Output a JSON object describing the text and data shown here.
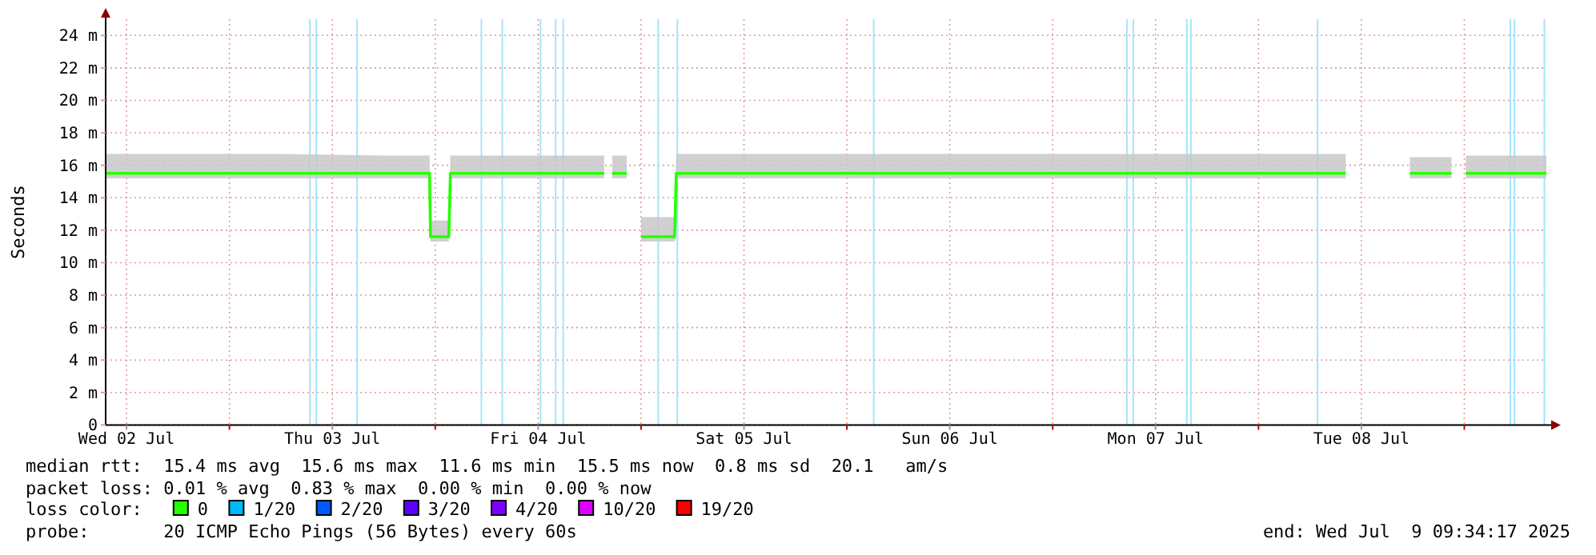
{
  "chart_data": {
    "type": "line",
    "ylabel": "Seconds",
    "legend_title": "loss color:",
    "legend": "bottom",
    "grid": true,
    "xlim": [
      "2025-07-02T09:34",
      "2025-07-09T09:34"
    ],
    "xticks": [
      {
        "value": "2025-07-02T12:00",
        "label": "Wed 02 Jul"
      },
      {
        "value": "2025-07-03T00:00",
        "label": null
      },
      {
        "value": "2025-07-03T12:00",
        "label": "Thu 03 Jul"
      },
      {
        "value": "2025-07-04T00:00",
        "label": null
      },
      {
        "value": "2025-07-04T12:00",
        "label": "Fri 04 Jul"
      },
      {
        "value": "2025-07-05T00:00",
        "label": null
      },
      {
        "value": "2025-07-05T12:00",
        "label": "Sat 05 Jul"
      },
      {
        "value": "2025-07-06T00:00",
        "label": null
      },
      {
        "value": "2025-07-06T12:00",
        "label": "Sun 06 Jul"
      },
      {
        "value": "2025-07-07T00:00",
        "label": null
      },
      {
        "value": "2025-07-07T12:00",
        "label": "Mon 07 Jul"
      },
      {
        "value": "2025-07-08T00:00",
        "label": null
      },
      {
        "value": "2025-07-08T12:00",
        "label": "Tue 08 Jul"
      },
      {
        "value": "2025-07-09T00:00",
        "label": null
      }
    ],
    "ylim": [
      0,
      25
    ],
    "yticks": [
      0,
      {
        "value": 2,
        "label": "2 m"
      },
      {
        "value": 4,
        "label": "4 m"
      },
      {
        "value": 6,
        "label": "6 m"
      },
      {
        "value": 8,
        "label": "8 m"
      },
      {
        "value": 10,
        "label": "10 m"
      },
      {
        "value": 12,
        "label": "12 m"
      },
      {
        "value": 14,
        "label": "14 m"
      },
      {
        "value": 16,
        "label": "16 m"
      },
      {
        "value": 18,
        "label": "18 m"
      },
      {
        "value": 20,
        "label": "20 m"
      },
      {
        "value": 22,
        "label": "22 m"
      },
      {
        "value": 24,
        "label": "24 m"
      }
    ],
    "series": [
      {
        "name": "0",
        "color": "#26ff00",
        "x": [
          "2025-07-02T09:34",
          "2025-07-02T18:00",
          "2025-07-03T06:00",
          "2025-07-03T18:00",
          "2025-07-03T23:20",
          "2025-07-03T23:27",
          "2025-07-04T01:35",
          "2025-07-04T01:46",
          "2025-07-04T12:00",
          "2025-07-04T19:42",
          "2025-07-04T20:00",
          "2025-07-04T20:38",
          "2025-07-04T22:20",
          "2025-07-04T23:00",
          "2025-07-05T00:00",
          "2025-07-05T03:55",
          "2025-07-05T04:06",
          "2025-07-05T18:00",
          "2025-07-06T12:00",
          "2025-07-07T06:00",
          "2025-07-07T18:00",
          "2025-07-08T10:10",
          "2025-07-08T14:00",
          "2025-07-08T17:39",
          "2025-07-08T22:30",
          "2025-07-08T23:20",
          "2025-07-09T00:10",
          "2025-07-09T09:34"
        ],
        "values": [
          15.5,
          15.5,
          15.5,
          15.5,
          15.5,
          11.6,
          11.6,
          15.5,
          15.5,
          15.5,
          null,
          15.5,
          15.5,
          null,
          11.6,
          11.6,
          15.5,
          15.5,
          15.5,
          15.5,
          15.5,
          15.5,
          null,
          15.5,
          15.5,
          null,
          15.5,
          15.5
        ],
        "lower": [
          15.2,
          15.2,
          15.2,
          15.2,
          15.2,
          11.3,
          11.3,
          15.2,
          15.2,
          15.2,
          null,
          15.2,
          15.2,
          null,
          11.3,
          11.3,
          15.2,
          15.2,
          15.2,
          15.2,
          15.2,
          15.2,
          null,
          15.2,
          15.2,
          null,
          15.2,
          15.2
        ],
        "upper": [
          16.7,
          16.7,
          16.7,
          16.6,
          16.6,
          12.6,
          12.6,
          16.6,
          16.6,
          16.6,
          null,
          16.6,
          16.6,
          null,
          12.8,
          12.8,
          16.7,
          16.7,
          16.7,
          16.7,
          16.7,
          16.7,
          null,
          16.5,
          16.5,
          null,
          16.6,
          16.6
        ]
      },
      {
        "name": "1/20",
        "color": "#00b8ff"
      },
      {
        "name": "2/20",
        "color": "#0059ff"
      },
      {
        "name": "3/20",
        "color": "#5e00ff"
      },
      {
        "name": "4/20",
        "color": "#7e00ff"
      },
      {
        "name": "10/20",
        "color": "#dd00ff"
      },
      {
        "name": "19/20",
        "color": "#ff0000"
      }
    ],
    "ref_lines": [
      {
        "axis": "x",
        "value": "2025-07-03T09:23",
        "color": "#a6e4fa"
      },
      {
        "axis": "x",
        "value": "2025-07-03T10:08",
        "color": "#a6e4fa"
      },
      {
        "axis": "x",
        "value": "2025-07-03T14:53",
        "color": "#a6e4fa"
      },
      {
        "axis": "x",
        "value": "2025-07-04T05:23",
        "color": "#a6e4fa"
      },
      {
        "axis": "x",
        "value": "2025-07-04T07:49",
        "color": "#a6e4fa"
      },
      {
        "axis": "x",
        "value": "2025-07-04T12:17",
        "color": "#a6e4fa"
      },
      {
        "axis": "x",
        "value": "2025-07-04T14:03",
        "color": "#a6e4fa"
      },
      {
        "axis": "x",
        "value": "2025-07-04T14:55",
        "color": "#a6e4fa"
      },
      {
        "axis": "x",
        "value": "2025-07-05T02:00",
        "color": "#a6e4fa"
      },
      {
        "axis": "x",
        "value": "2025-07-05T04:14",
        "color": "#a6e4fa"
      },
      {
        "axis": "x",
        "value": "2025-07-06T03:08",
        "color": "#a6e4fa"
      },
      {
        "axis": "x",
        "value": "2025-07-07T08:39",
        "color": "#a6e4fa"
      },
      {
        "axis": "x",
        "value": "2025-07-07T09:24",
        "color": "#a6e4fa"
      },
      {
        "axis": "x",
        "value": "2025-07-07T15:38",
        "color": "#a6e4fa"
      },
      {
        "axis": "x",
        "value": "2025-07-07T16:07",
        "color": "#a6e4fa"
      },
      {
        "axis": "x",
        "value": "2025-07-08T06:53",
        "color": "#a6e4fa"
      },
      {
        "axis": "x",
        "value": "2025-07-09T05:22",
        "color": "#a6e4fa"
      },
      {
        "axis": "x",
        "value": "2025-07-09T05:51",
        "color": "#a6e4fa"
      },
      {
        "axis": "x",
        "value": "2025-07-09T09:20",
        "color": "#a6e4fa"
      }
    ],
    "annotations": [
      "median rtt:  15.4 ms avg  15.6 ms max  11.6 ms min  15.5 ms now  0.8 ms sd  20.1   am/s",
      "packet loss: 0.01 % avg  0.83 % max  0.00 % min  0.00 % now",
      "probe:       20 ICMP Echo Pings (56 Bytes) every 60s",
      "end: Wed Jul  9 09:34:17 2025"
    ]
  }
}
